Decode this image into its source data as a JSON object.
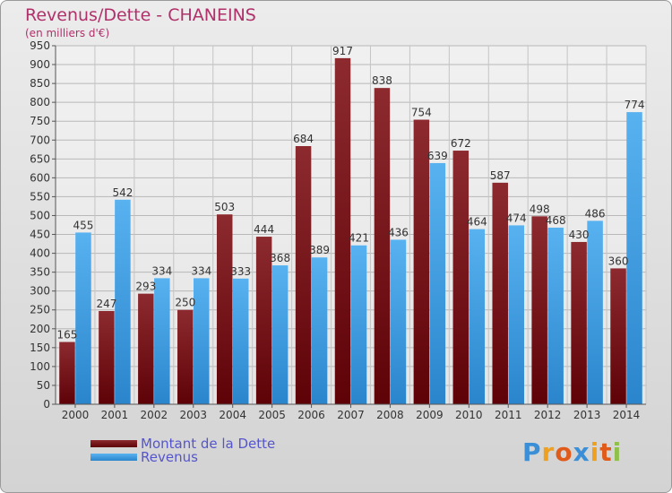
{
  "logo": {
    "text": "Proxiti",
    "letter_colors": [
      "#3a8fd6",
      "#f0a020",
      "#e05a1a",
      "#3a8fd6",
      "#f0a020",
      "#e05a1a",
      "#8fc04a"
    ]
  },
  "colors": {
    "dette": "#7a0e14",
    "revenus": "#3a9ee8",
    "title": "#b0306a",
    "legend_text": "#5555cc"
  },
  "chart_data": {
    "type": "bar",
    "title": "Revenus/Dette - CHANEINS",
    "subtitle": "(en milliers d'€)",
    "categories": [
      "2000",
      "2001",
      "2002",
      "2003",
      "2004",
      "2005",
      "2006",
      "2007",
      "2008",
      "2009",
      "2010",
      "2011",
      "2012",
      "2013",
      "2014"
    ],
    "series": [
      {
        "name": "Montant de la Dette",
        "values": [
          165,
          247,
          293,
          250,
          503,
          444,
          684,
          917,
          838,
          754,
          672,
          587,
          498,
          430,
          360
        ]
      },
      {
        "name": "Revenus",
        "values": [
          455,
          542,
          334,
          334,
          333,
          368,
          389,
          421,
          436,
          639,
          464,
          474,
          468,
          486,
          774
        ]
      }
    ],
    "ylim": [
      0,
      950
    ],
    "yticks": [
      0,
      50,
      100,
      150,
      200,
      250,
      300,
      350,
      400,
      450,
      500,
      550,
      600,
      650,
      700,
      750,
      800,
      850,
      900,
      950
    ],
    "grid": true,
    "legend_position": "bottom-left"
  }
}
